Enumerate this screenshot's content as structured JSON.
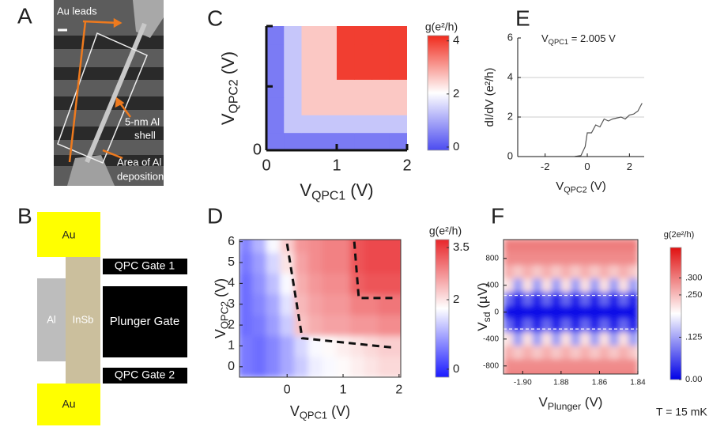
{
  "panel_a": {
    "label": "A",
    "leads": "Au leads",
    "shell": [
      "5-nm Al",
      "shell"
    ],
    "area": [
      "Area of Al",
      "deposition"
    ]
  },
  "panel_b": {
    "label": "B",
    "au_top": "Au",
    "au_bottom": "Au",
    "al": "Al",
    "insb": "InSb",
    "gate1": "QPC Gate 1",
    "plunger": "Plunger Gate",
    "gate2": "QPC Gate 2"
  },
  "chart_data": [
    {
      "panel": "C",
      "type": "heatmap",
      "x_label": {
        "text": "V",
        "sub": "QPC1",
        "after": "  (V)"
      },
      "y_label": {
        "text": "V",
        "sub": "QPC2",
        "after": "  (V)"
      },
      "xlim": [
        0,
        2
      ],
      "ylim": [
        0,
        1.75
      ],
      "xticks": [
        0,
        1,
        2
      ],
      "yticks": [
        0
      ],
      "minor_yticks": [
        0.9,
        1.75
      ],
      "x": [
        0.125,
        0.375,
        0.625,
        0.875,
        1.125,
        1.375,
        1.625,
        1.875
      ],
      "y": [
        0.125,
        0.375,
        0.625,
        0.875,
        1.125,
        1.375,
        1.625
      ],
      "z": [
        [
          0.45,
          0.45,
          0.45,
          0.45,
          0.45,
          0.45,
          0.45,
          0.45
        ],
        [
          0.45,
          1.35,
          1.35,
          1.35,
          1.35,
          1.35,
          1.35,
          1.35
        ],
        [
          0.45,
          1.35,
          2.6,
          2.6,
          2.6,
          2.6,
          2.6,
          2.6
        ],
        [
          0.45,
          1.35,
          2.6,
          2.6,
          2.6,
          2.6,
          2.6,
          2.6
        ],
        [
          0.45,
          1.35,
          2.6,
          2.6,
          4.0,
          4.0,
          4.0,
          4.0
        ],
        [
          0.45,
          1.35,
          2.6,
          2.6,
          4.0,
          4.0,
          4.0,
          4.0
        ],
        [
          0.45,
          1.35,
          2.6,
          2.6,
          4.0,
          4.0,
          4.0,
          4.0
        ]
      ],
      "colormap": [
        "#4b4bf0",
        "#ffffff",
        "#f02a1c"
      ],
      "smooth": false,
      "cbar_title": "g(e²/h)",
      "cbar_lim": [
        -0.12,
        4.2
      ],
      "cbar_ticks": [
        0,
        2,
        4
      ]
    },
    {
      "panel": "E",
      "type": "line",
      "x_label": {
        "text": "V",
        "sub": "QPC2",
        "after": " (V)"
      },
      "y_label": "dI/dV (e²/h)",
      "annotation": {
        "text": "V",
        "sub": "QPC1",
        "after": " = 2.005 V"
      },
      "xlim": [
        -3.3,
        2.7
      ],
      "ylim": [
        0,
        6
      ],
      "xticks": [
        -2,
        0,
        2
      ],
      "yticks": [
        0,
        2,
        4,
        6
      ],
      "gridlines": [
        2,
        4
      ],
      "color": "#555555",
      "x": [
        -0.6,
        -0.3,
        -0.1,
        0,
        0.2,
        0.4,
        0.6,
        0.8,
        1.0,
        1.2,
        1.4,
        1.6,
        1.8,
        2.0,
        2.2,
        2.4,
        2.6
      ],
      "values": [
        0,
        0.05,
        0.5,
        1.2,
        1.2,
        1.6,
        1.5,
        1.9,
        1.8,
        1.9,
        1.95,
        2.0,
        1.9,
        2.1,
        2.15,
        2.3,
        2.7
      ]
    },
    {
      "panel": "D",
      "type": "heatmap",
      "x_label": {
        "text": "V",
        "sub": "QPC1",
        "after": " (V)"
      },
      "y_label": {
        "text": "V",
        "sub": "QPC2",
        "after": " (V)"
      },
      "xlim": [
        -0.85,
        2.03
      ],
      "ylim": [
        -0.5,
        6.1
      ],
      "xticks": [
        0,
        1,
        2
      ],
      "yticks": [
        0,
        1,
        2,
        3,
        4,
        5,
        6
      ],
      "x": [
        -0.75,
        -0.5,
        -0.25,
        0,
        0.25,
        0.5,
        0.75,
        1,
        1.25,
        1.5,
        1.75,
        2
      ],
      "y": [
        0,
        1,
        2,
        3,
        4,
        5,
        6
      ],
      "z": [
        [
          0.6,
          0.5,
          0.7,
          1.0,
          1.3,
          1.6,
          1.7,
          1.8,
          1.9,
          2.0,
          2.1,
          2.1
        ],
        [
          0.6,
          0.5,
          0.7,
          1.0,
          1.4,
          1.7,
          1.8,
          1.9,
          2.0,
          2.1,
          2.2,
          2.2
        ],
        [
          0.5,
          0.6,
          0.9,
          1.3,
          2.3,
          2.5,
          2.6,
          2.6,
          2.7,
          2.7,
          2.8,
          2.8
        ],
        [
          0.5,
          0.7,
          1.0,
          1.5,
          2.4,
          2.6,
          2.7,
          2.7,
          2.9,
          2.9,
          3.0,
          3.0
        ],
        [
          0.5,
          0.8,
          1.2,
          1.7,
          2.5,
          2.7,
          2.8,
          2.8,
          3.2,
          3.3,
          3.3,
          3.3
        ],
        [
          0.6,
          0.9,
          1.4,
          2.0,
          2.6,
          2.8,
          2.9,
          2.9,
          3.3,
          3.4,
          3.4,
          3.4
        ],
        [
          0.7,
          1.1,
          1.7,
          2.2,
          2.7,
          2.8,
          2.9,
          2.9,
          3.3,
          3.4,
          3.4,
          3.4
        ]
      ],
      "guide_lines": [
        {
          "x": [
            0,
            0.27,
            1.93
          ],
          "y": [
            5.9,
            1.37,
            0.91
          ]
        },
        {
          "x": [
            1.2,
            1.28,
            1.93
          ],
          "y": [
            6,
            3.3,
            3.3
          ]
        }
      ],
      "colormap": [
        "#1a1aff",
        "#ffffff",
        "#e8262a"
      ],
      "smooth": true,
      "cbar_title": "g(e²/h)",
      "cbar_lim": [
        -0.23,
        3.73
      ],
      "cbar_ticks": [
        0,
        2,
        3.5
      ]
    },
    {
      "panel": "F",
      "type": "heatmap",
      "x_label": {
        "text": "V",
        "sub": "Plunger",
        "after": " (V)"
      },
      "y_label": {
        "text": "V",
        "sub": "sd",
        "after": " (µV)"
      },
      "xlim": [
        -1.91,
        -1.84
      ],
      "ylim": [
        -920,
        1080
      ],
      "xticks": [
        {
          "value": -1.9,
          "label": "-1.90"
        },
        {
          "value": -1.88,
          "label": "1.88"
        },
        {
          "value": -1.86,
          "label": "1.86"
        },
        {
          "value": -1.84,
          "label": "1.84"
        }
      ],
      "yticks": [
        800,
        400,
        0,
        -400,
        -800
      ],
      "x": [
        -1.9075,
        -1.9025,
        -1.8975,
        -1.8925,
        -1.8875,
        -1.8825,
        -1.8775,
        -1.8725,
        -1.8675,
        -1.8625,
        -1.8575,
        -1.8525,
        -1.8475,
        -1.8425
      ],
      "y": [
        1000,
        800,
        600,
        400,
        200,
        0,
        -200,
        -400,
        -600,
        -800,
        -1000
      ],
      "z": [
        [
          0.3,
          0.3,
          0.3,
          0.3,
          0.3,
          0.3,
          0.3,
          0.3,
          0.3,
          0.3,
          0.3,
          0.3,
          0.3,
          0.3
        ],
        [
          0.29,
          0.29,
          0.29,
          0.29,
          0.29,
          0.29,
          0.29,
          0.29,
          0.29,
          0.29,
          0.29,
          0.29,
          0.29,
          0.29
        ],
        [
          0.26,
          0.24,
          0.26,
          0.24,
          0.26,
          0.24,
          0.26,
          0.24,
          0.26,
          0.24,
          0.26,
          0.24,
          0.26,
          0.24
        ],
        [
          0.22,
          0.12,
          0.22,
          0.12,
          0.22,
          0.12,
          0.22,
          0.12,
          0.22,
          0.12,
          0.22,
          0.12,
          0.22,
          0.12
        ],
        [
          0.08,
          0.02,
          0.08,
          0.02,
          0.08,
          0.02,
          0.08,
          0.02,
          0.08,
          0.02,
          0.08,
          0.02,
          0.08,
          0.02
        ],
        [
          0.01,
          0.01,
          0.01,
          0.01,
          0.01,
          0.01,
          0.01,
          0.01,
          0.01,
          0.01,
          0.01,
          0.01,
          0.01,
          0.01
        ],
        [
          0.08,
          0.02,
          0.08,
          0.02,
          0.08,
          0.02,
          0.08,
          0.02,
          0.08,
          0.02,
          0.08,
          0.02,
          0.08,
          0.02
        ],
        [
          0.22,
          0.12,
          0.22,
          0.12,
          0.22,
          0.12,
          0.22,
          0.12,
          0.22,
          0.12,
          0.22,
          0.12,
          0.22,
          0.12
        ],
        [
          0.26,
          0.24,
          0.26,
          0.24,
          0.26,
          0.24,
          0.26,
          0.24,
          0.26,
          0.24,
          0.26,
          0.24,
          0.26,
          0.24
        ],
        [
          0.29,
          0.29,
          0.29,
          0.29,
          0.29,
          0.29,
          0.29,
          0.29,
          0.29,
          0.29,
          0.29,
          0.29,
          0.29,
          0.29
        ],
        [
          0.3,
          0.3,
          0.3,
          0.3,
          0.3,
          0.3,
          0.3,
          0.3,
          0.3,
          0.3,
          0.3,
          0.3,
          0.3,
          0.3
        ]
      ],
      "dashed_levels": [
        250,
        -250
      ],
      "colormap": [
        "#0000e6",
        "#ffffff",
        "#e01010"
      ],
      "smooth": true,
      "cbar_title": "g(2e²/h)",
      "cbar_lim": [
        0,
        0.39
      ],
      "cbar_ticks": [
        {
          "value": 0.3,
          "label": ".300"
        },
        {
          "value": 0.25,
          "label": ".250"
        },
        {
          "value": 0.125,
          "label": ".125"
        },
        {
          "value": 0,
          "label": "0.00"
        }
      ],
      "note": "T = 15 mK"
    }
  ]
}
